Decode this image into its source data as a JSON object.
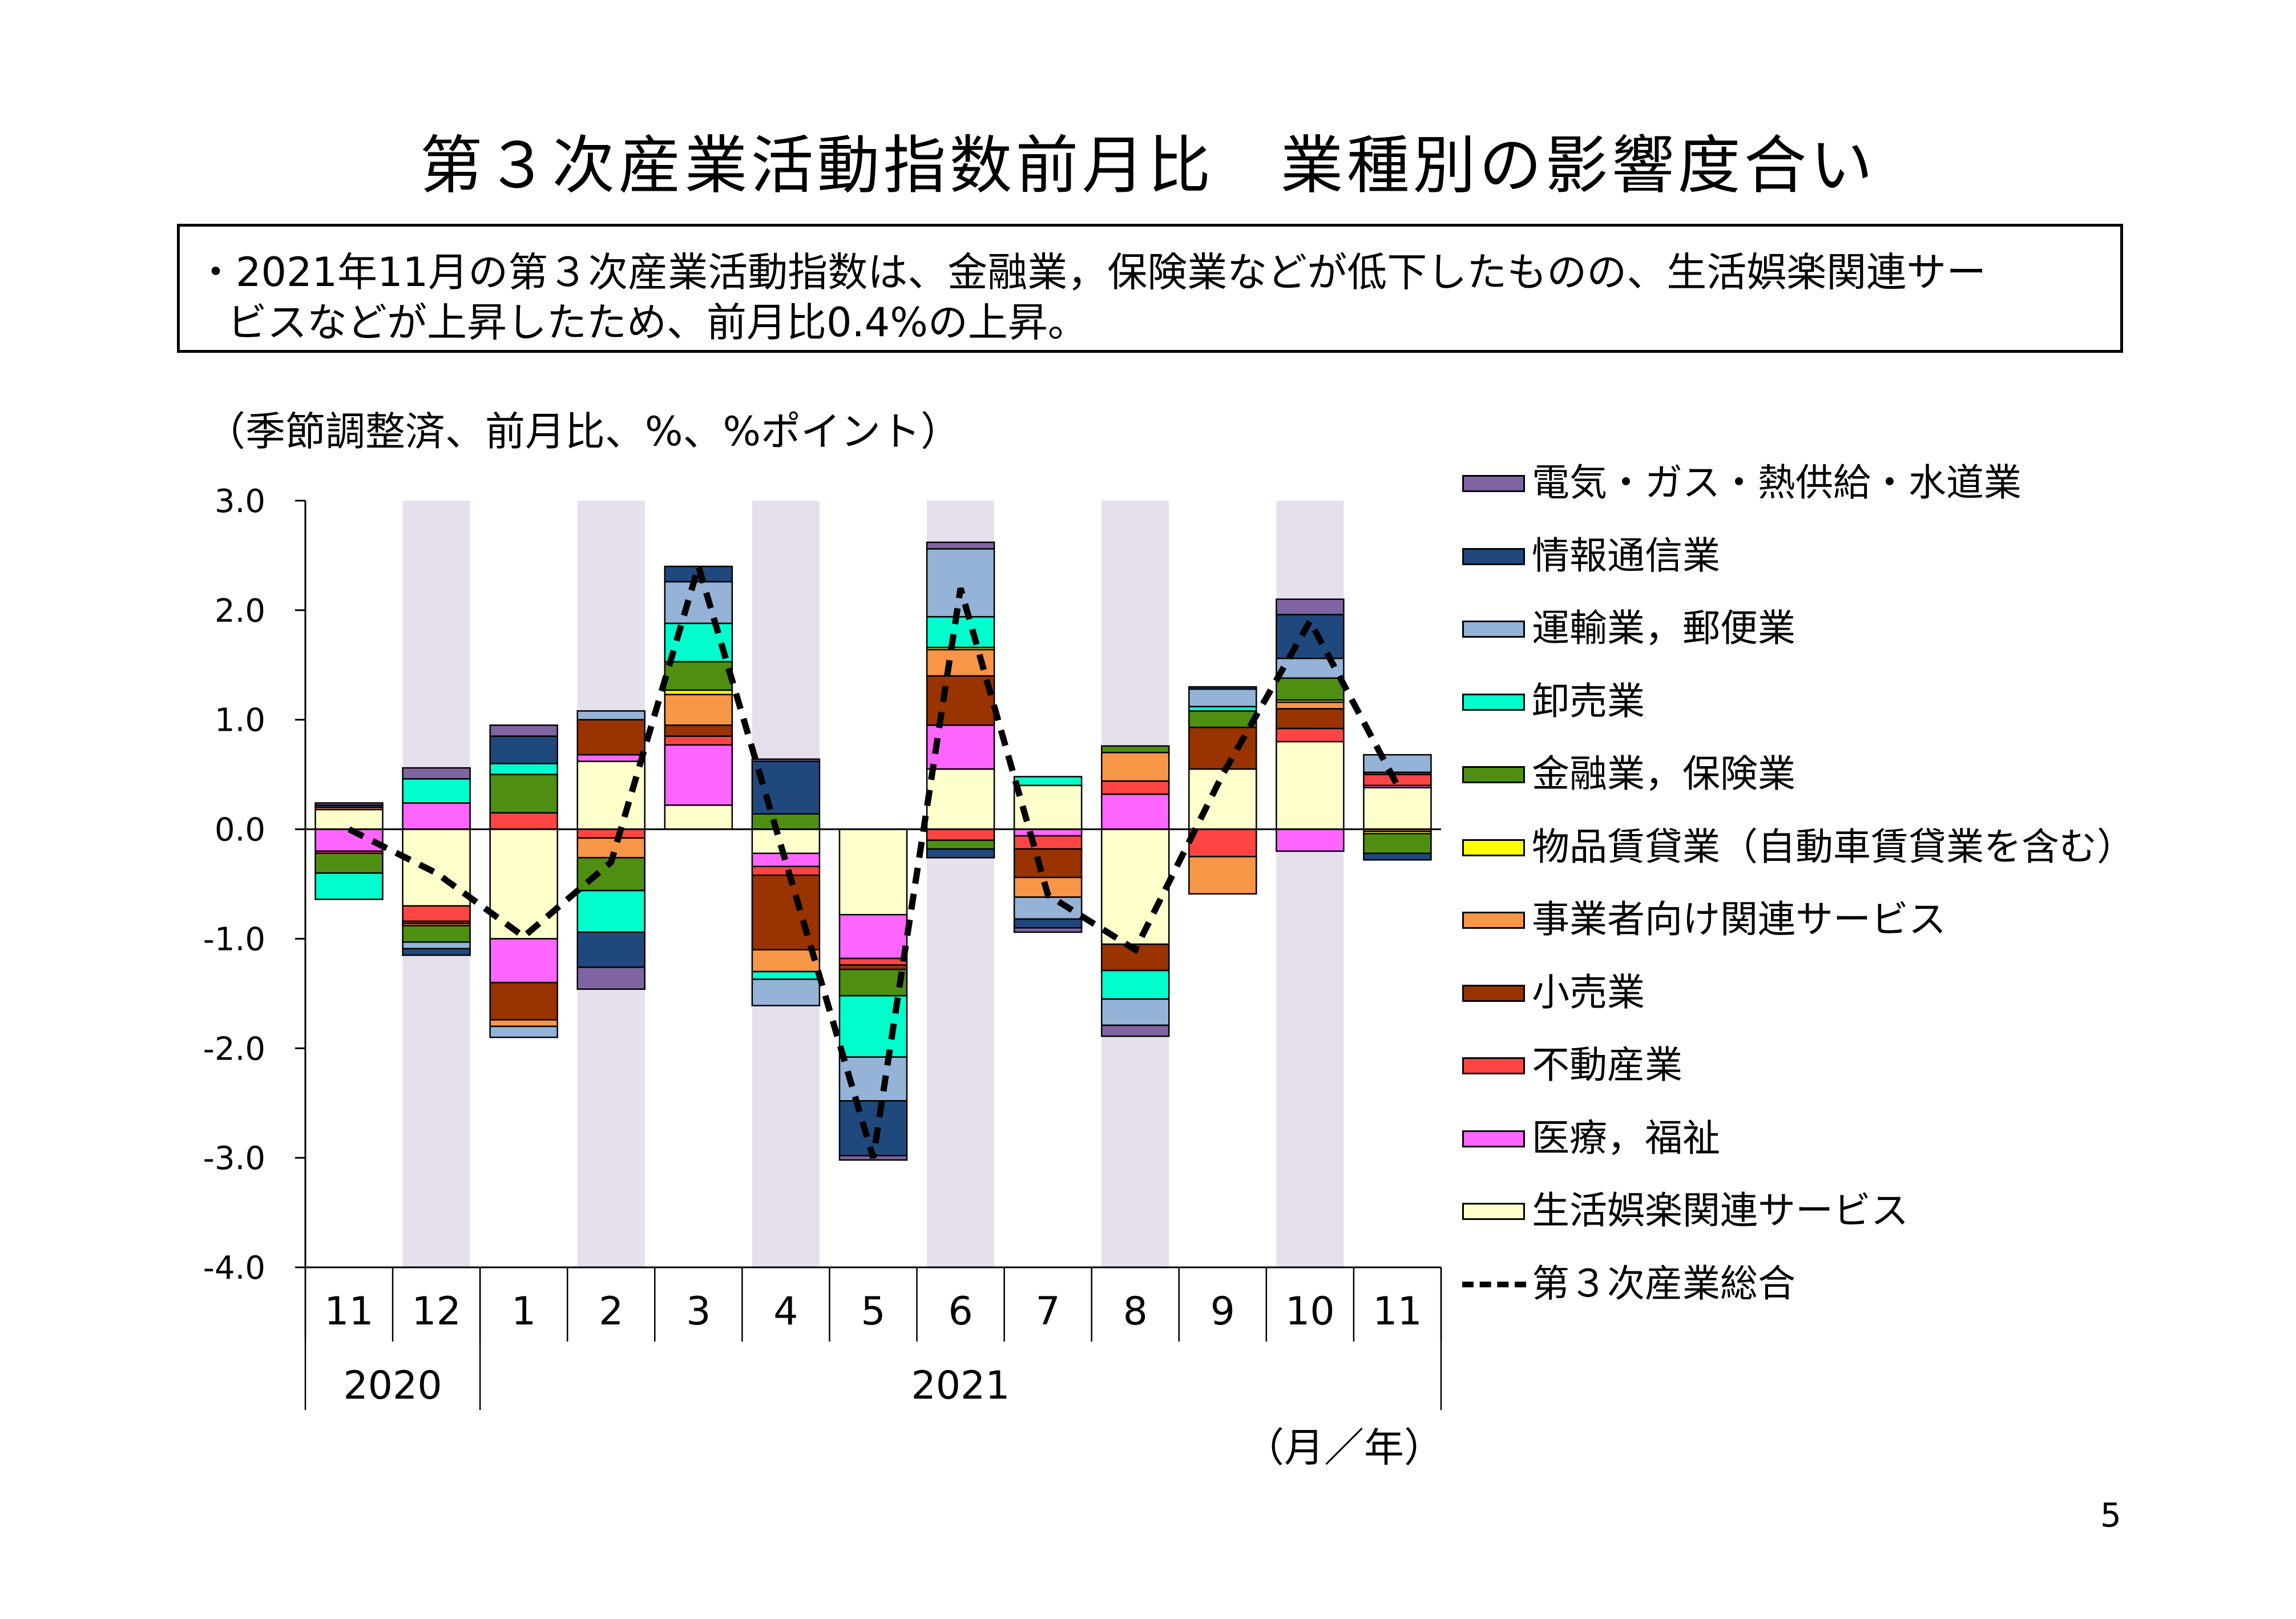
{
  "title": "第３次産業活動指数前月比　業種別の影響度合い",
  "summary": {
    "line1": "・2021年11月の第３次産業活動指数は、金融業，保険業などが低下したものの、生活娯楽関連サー",
    "line2": "ビスなどが上昇したため、前月比0.4%の上昇。"
  },
  "unit_label": "（季節調整済、前月比、%、%ポイント）",
  "xaxis_unit_label": "（月／年）",
  "page_number": "5",
  "chart_data": {
    "type": "bar",
    "stacked": true,
    "categories": [
      "11",
      "12",
      "1",
      "2",
      "3",
      "4",
      "5",
      "6",
      "7",
      "8",
      "9",
      "10",
      "11"
    ],
    "years": [
      {
        "label": "2020",
        "start": 0,
        "end": 1
      },
      {
        "label": "2021",
        "start": 2,
        "end": 12
      }
    ],
    "shaded_categories": [
      1,
      3,
      5,
      7,
      9,
      11
    ],
    "ylim": [
      -4.0,
      3.0
    ],
    "yticks": [
      "3.0",
      "2.0",
      "1.0",
      "0.0",
      "-1.0",
      "-2.0",
      "-3.0",
      "-4.0"
    ],
    "series": [
      {
        "name": "生活娯楽関連サービス",
        "color": "#FFFFCC",
        "values": [
          0.18,
          -0.7,
          -1.0,
          0.62,
          0.22,
          -0.22,
          -0.78,
          0.55,
          0.4,
          -1.05,
          0.55,
          0.8,
          0.38
        ]
      },
      {
        "name": "医療，福祉",
        "color": "#FF66FF",
        "values": [
          -0.2,
          0.24,
          -0.4,
          0.06,
          0.55,
          -0.12,
          -0.4,
          0.4,
          -0.06,
          0.32,
          0.0,
          -0.2,
          0.02
        ]
      },
      {
        "name": "不動産業",
        "color": "#FF4444",
        "values": [
          -0.02,
          -0.14,
          0.15,
          -0.08,
          0.08,
          -0.08,
          -0.06,
          -0.1,
          -0.12,
          0.12,
          -0.25,
          0.12,
          0.1
        ]
      },
      {
        "name": "小売業",
        "color": "#993300",
        "values": [
          0.0,
          -0.02,
          -0.34,
          0.32,
          0.1,
          -0.68,
          -0.04,
          0.45,
          -0.26,
          -0.24,
          0.38,
          0.18,
          0.02
        ]
      },
      {
        "name": "事業者向け関連サービス",
        "color": "#F79646",
        "values": [
          0.02,
          -0.02,
          -0.06,
          -0.18,
          0.28,
          -0.2,
          0.0,
          0.24,
          -0.18,
          0.26,
          -0.34,
          0.06,
          -0.02
        ]
      },
      {
        "name": "物品賃貸業（自動車賃貸業を含む）",
        "color": "#FFFF00",
        "values": [
          0.0,
          0.0,
          0.0,
          0.0,
          0.04,
          0.0,
          0.0,
          0.02,
          0.0,
          0.0,
          0.0,
          0.02,
          -0.02
        ]
      },
      {
        "name": "金融業，保険業",
        "color": "#4E8F12",
        "values": [
          -0.18,
          -0.15,
          0.35,
          -0.3,
          0.26,
          0.14,
          -0.24,
          -0.08,
          0.0,
          0.06,
          0.15,
          0.2,
          -0.18
        ]
      },
      {
        "name": "卸売業",
        "color": "#00FFCC",
        "values": [
          -0.24,
          0.22,
          0.1,
          -0.38,
          0.35,
          -0.07,
          -0.56,
          0.28,
          0.08,
          -0.26,
          0.04,
          0.0,
          0.0
        ]
      },
      {
        "name": "運輸業，郵便業",
        "color": "#95B3D7",
        "values": [
          0.0,
          -0.06,
          -0.1,
          0.08,
          0.38,
          -0.24,
          -0.4,
          0.62,
          -0.2,
          -0.24,
          0.16,
          0.18,
          0.16
        ]
      },
      {
        "name": "情報通信業",
        "color": "#1F497D",
        "values": [
          0.02,
          -0.06,
          0.25,
          -0.32,
          0.14,
          0.48,
          -0.5,
          -0.08,
          -0.08,
          0.0,
          0.02,
          0.4,
          -0.06
        ]
      },
      {
        "name": "電気・ガス・熱供給・水道業",
        "color": "#8064A2",
        "values": [
          0.02,
          0.1,
          0.1,
          -0.2,
          0.0,
          0.02,
          -0.04,
          0.06,
          -0.04,
          -0.1,
          0.0,
          0.14,
          0.0
        ]
      }
    ],
    "total": {
      "name": "第３次産業総合",
      "values": [
        0.0,
        -0.4,
        -0.98,
        -0.3,
        2.4,
        -0.3,
        -3.0,
        2.2,
        -0.6,
        -1.1,
        0.5,
        1.9,
        0.4
      ]
    }
  }
}
